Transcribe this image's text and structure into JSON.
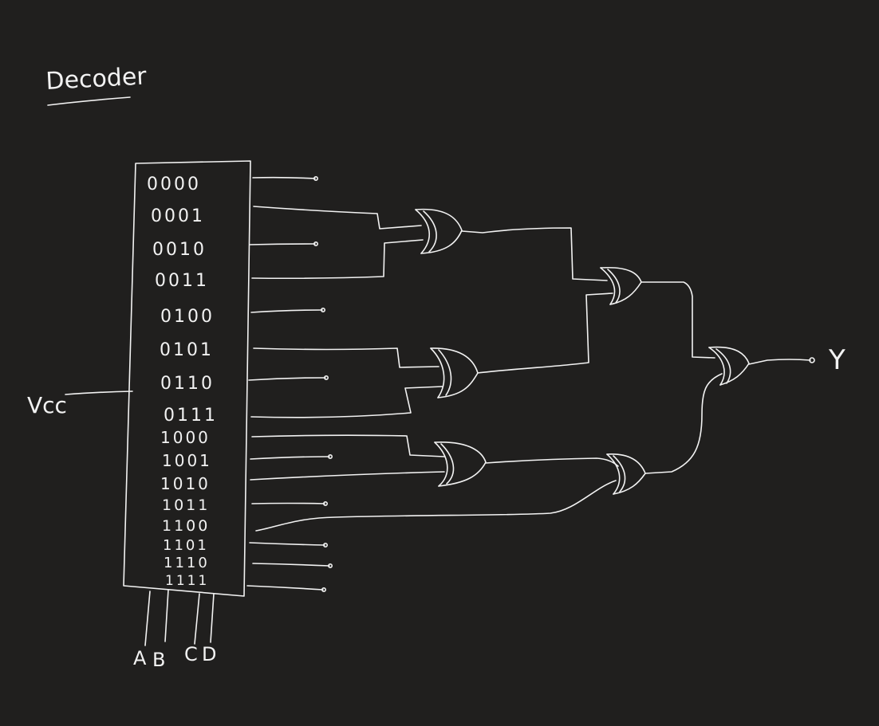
{
  "title": "Decoder",
  "supply_label": "Vcc",
  "output_label": "Y",
  "select_inputs": [
    "A",
    "B",
    "C",
    "D"
  ],
  "decoder_outputs": [
    "0000",
    "0001",
    "0010",
    "0011",
    "0100",
    "0101",
    "0110",
    "0111",
    "1000",
    "1001",
    "1010",
    "1011",
    "1100",
    "1101",
    "1110",
    "1111"
  ],
  "ink_color": "#f2f2f2",
  "background_color": "#201f1e"
}
